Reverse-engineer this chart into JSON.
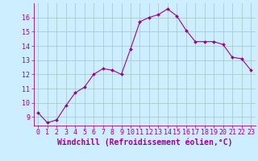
{
  "x": [
    0,
    1,
    2,
    3,
    4,
    5,
    6,
    7,
    8,
    9,
    10,
    11,
    12,
    13,
    14,
    15,
    16,
    17,
    18,
    19,
    20,
    21,
    22,
    23
  ],
  "y": [
    9.3,
    8.6,
    8.8,
    9.8,
    10.7,
    11.1,
    12.0,
    12.4,
    12.3,
    12.0,
    13.8,
    15.7,
    16.0,
    16.2,
    16.6,
    16.1,
    15.1,
    14.3,
    14.3,
    14.3,
    14.1,
    13.2,
    13.1,
    12.3
  ],
  "line_color": "#990099",
  "marker_color": "#990099",
  "bg_color": "#cceeff",
  "grid_color": "#aacccc",
  "xlabel": "Windchill (Refroidissement éolien,°C)",
  "xlabel_color": "#990099",
  "ylabel_ticks": [
    9,
    10,
    11,
    12,
    13,
    14,
    15,
    16
  ],
  "ylim": [
    8.4,
    17.0
  ],
  "xlim": [
    -0.5,
    23.5
  ],
  "tick_color": "#990099",
  "tick_fontsize": 6.0,
  "xlabel_fontsize": 7.0
}
